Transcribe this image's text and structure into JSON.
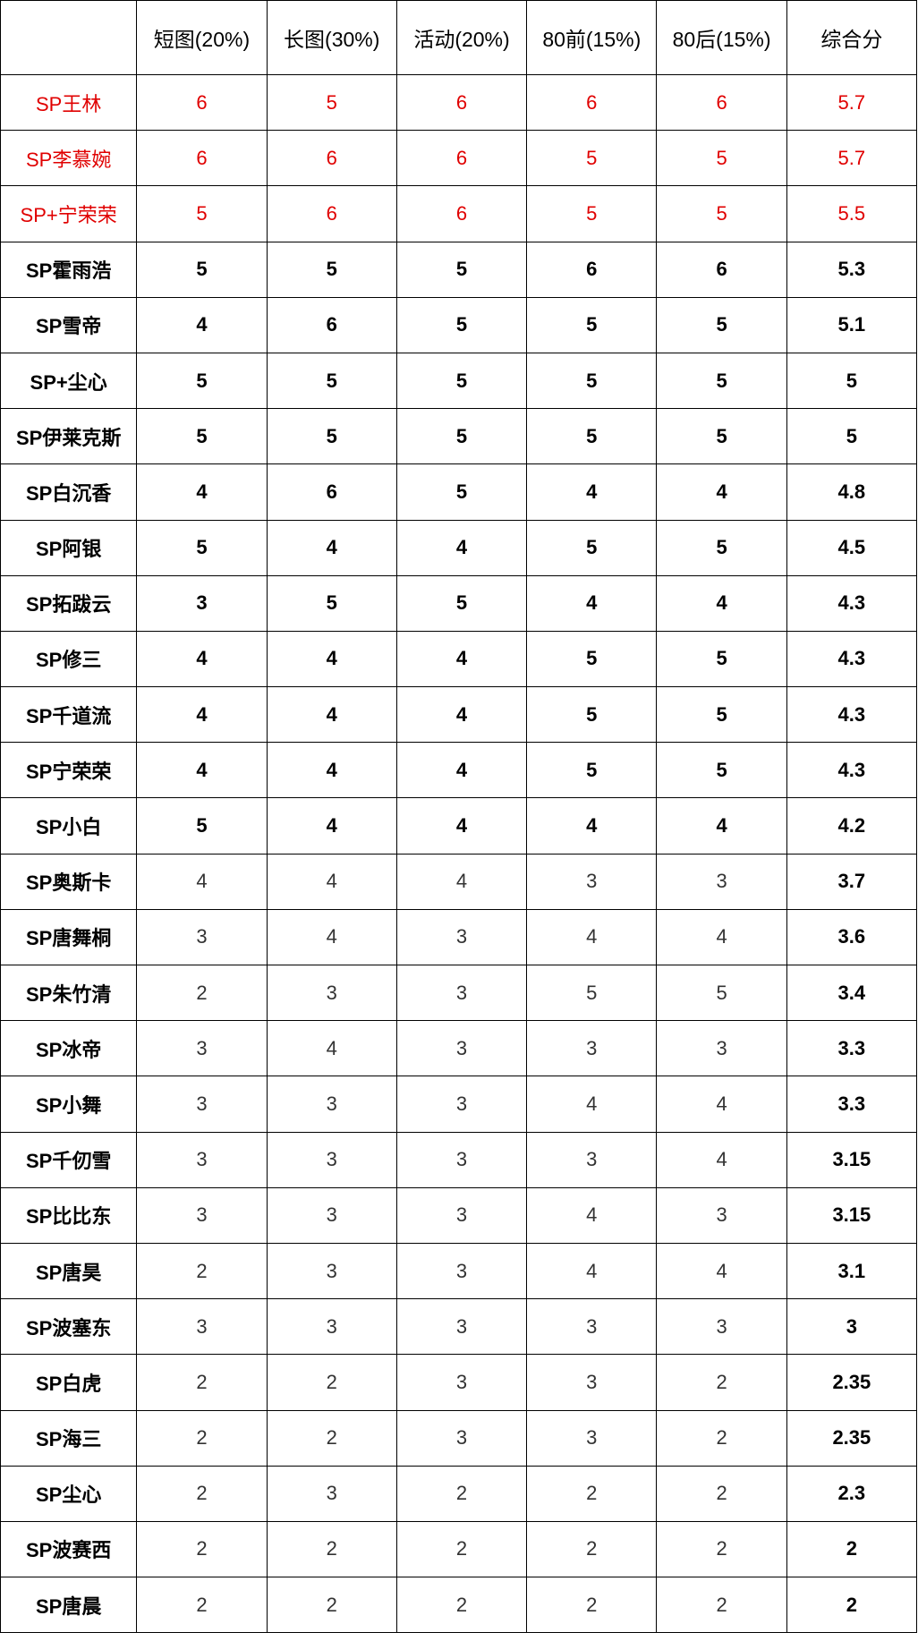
{
  "table": {
    "headers": [
      "",
      "短图(20%)",
      "长图(30%)",
      "活动(20%)",
      "80前(15%)",
      "80后(15%)",
      "综合分"
    ],
    "highlight_color": "#e00000",
    "rows": [
      {
        "name": "SP王林",
        "values": [
          "6",
          "5",
          "6",
          "6",
          "6"
        ],
        "total": "5.7",
        "style": "top"
      },
      {
        "name": "SP李慕婉",
        "values": [
          "6",
          "6",
          "6",
          "5",
          "5"
        ],
        "total": "5.7",
        "style": "top"
      },
      {
        "name": "SP+宁荣荣",
        "values": [
          "5",
          "6",
          "6",
          "5",
          "5"
        ],
        "total": "5.5",
        "style": "top"
      },
      {
        "name": "SP霍雨浩",
        "values": [
          "5",
          "5",
          "5",
          "6",
          "6"
        ],
        "total": "5.3",
        "style": "bold"
      },
      {
        "name": "SP雪帝",
        "values": [
          "4",
          "6",
          "5",
          "5",
          "5"
        ],
        "total": "5.1",
        "style": "bold"
      },
      {
        "name": "SP+尘心",
        "values": [
          "5",
          "5",
          "5",
          "5",
          "5"
        ],
        "total": "5",
        "style": "bold"
      },
      {
        "name": "SP伊莱克斯",
        "values": [
          "5",
          "5",
          "5",
          "5",
          "5"
        ],
        "total": "5",
        "style": "bold"
      },
      {
        "name": "SP白沉香",
        "values": [
          "4",
          "6",
          "5",
          "4",
          "4"
        ],
        "total": "4.8",
        "style": "bold"
      },
      {
        "name": "SP阿银",
        "values": [
          "5",
          "4",
          "4",
          "5",
          "5"
        ],
        "total": "4.5",
        "style": "bold"
      },
      {
        "name": "SP拓跋云",
        "values": [
          "3",
          "5",
          "5",
          "4",
          "4"
        ],
        "total": "4.3",
        "style": "bold"
      },
      {
        "name": "SP修三",
        "values": [
          "4",
          "4",
          "4",
          "5",
          "5"
        ],
        "total": "4.3",
        "style": "bold"
      },
      {
        "name": "SP千道流",
        "values": [
          "4",
          "4",
          "4",
          "5",
          "5"
        ],
        "total": "4.3",
        "style": "bold"
      },
      {
        "name": "SP宁荣荣",
        "values": [
          "4",
          "4",
          "4",
          "5",
          "5"
        ],
        "total": "4.3",
        "style": "bold"
      },
      {
        "name": "SP小白",
        "values": [
          "5",
          "4",
          "4",
          "4",
          "4"
        ],
        "total": "4.2",
        "style": "bold"
      },
      {
        "name": "SP奥斯卡",
        "values": [
          "4",
          "4",
          "4",
          "3",
          "3"
        ],
        "total": "3.7",
        "style": "light"
      },
      {
        "name": "SP唐舞桐",
        "values": [
          "3",
          "4",
          "3",
          "4",
          "4"
        ],
        "total": "3.6",
        "style": "light"
      },
      {
        "name": "SP朱竹清",
        "values": [
          "2",
          "3",
          "3",
          "5",
          "5"
        ],
        "total": "3.4",
        "style": "light"
      },
      {
        "name": "SP冰帝",
        "values": [
          "3",
          "4",
          "3",
          "3",
          "3"
        ],
        "total": "3.3",
        "style": "light"
      },
      {
        "name": "SP小舞",
        "values": [
          "3",
          "3",
          "3",
          "4",
          "4"
        ],
        "total": "3.3",
        "style": "light"
      },
      {
        "name": "SP千仞雪",
        "values": [
          "3",
          "3",
          "3",
          "3",
          "4"
        ],
        "total": "3.15",
        "style": "light"
      },
      {
        "name": "SP比比东",
        "values": [
          "3",
          "3",
          "3",
          "4",
          "3"
        ],
        "total": "3.15",
        "style": "light"
      },
      {
        "name": "SP唐昊",
        "values": [
          "2",
          "3",
          "3",
          "4",
          "4"
        ],
        "total": "3.1",
        "style": "light"
      },
      {
        "name": "SP波塞东",
        "values": [
          "3",
          "3",
          "3",
          "3",
          "3"
        ],
        "total": "3",
        "style": "light"
      },
      {
        "name": "SP白虎",
        "values": [
          "2",
          "2",
          "3",
          "3",
          "2"
        ],
        "total": "2.35",
        "style": "light"
      },
      {
        "name": "SP海三",
        "values": [
          "2",
          "2",
          "3",
          "3",
          "2"
        ],
        "total": "2.35",
        "style": "light"
      },
      {
        "name": "SP尘心",
        "values": [
          "2",
          "3",
          "2",
          "2",
          "2"
        ],
        "total": "2.3",
        "style": "light"
      },
      {
        "name": "SP波赛西",
        "values": [
          "2",
          "2",
          "2",
          "2",
          "2"
        ],
        "total": "2",
        "style": "light"
      },
      {
        "name": "SP唐晨",
        "values": [
          "2",
          "2",
          "2",
          "2",
          "2"
        ],
        "total": "2",
        "style": "light"
      }
    ]
  }
}
